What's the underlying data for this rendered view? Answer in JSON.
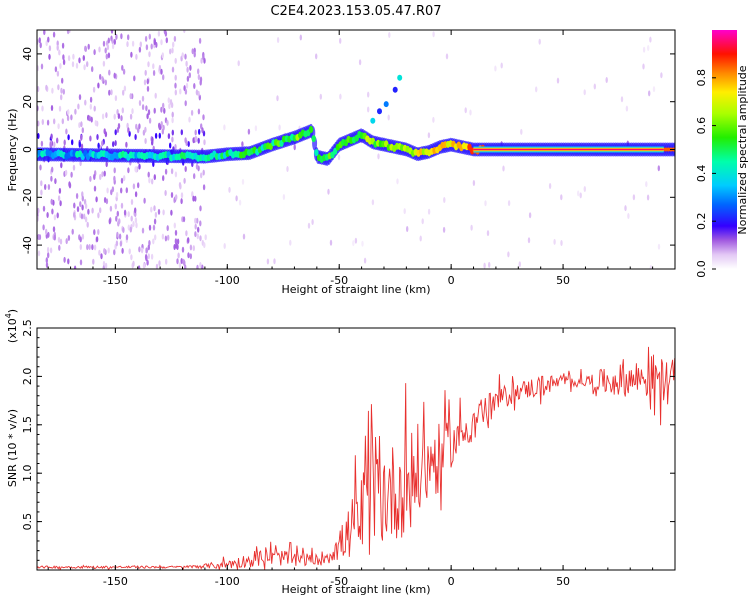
{
  "title": "C2E4.2023.153.05.47.R07",
  "colorbar": {
    "label": "Normalized spectral amplitude",
    "ticks": [
      "0.0",
      "0.2",
      "0.4",
      "0.6",
      "0.8"
    ]
  },
  "chart_data": [
    {
      "type": "heatmap",
      "title": "C2E4.2023.153.05.47.R07",
      "xlabel": "Height of straight line (km)",
      "ylabel": "Frequency (Hz)",
      "xlim": [
        -185,
        100
      ],
      "ylim": [
        -50,
        50
      ],
      "x_ticks": [
        -150,
        -100,
        -50,
        0,
        50
      ],
      "x_tick_labels": [
        "-150",
        "-100",
        "-50",
        "0",
        "50"
      ],
      "y_ticks": [
        -40,
        -20,
        0,
        20,
        40
      ],
      "y_tick_labels": [
        "-40",
        "-20",
        "0",
        "20",
        "40"
      ],
      "color_range": [
        0,
        1
      ],
      "ridge": {
        "x": [
          -185,
          -150,
          -110,
          -100,
          -90,
          -80,
          -70,
          -62,
          -60,
          -55,
          -50,
          -45,
          -40,
          -35,
          -30,
          -25,
          -20,
          -15,
          -10,
          -5,
          0,
          5,
          10,
          15,
          50,
          95
        ],
        "y": [
          -2,
          -2.5,
          -3,
          -2,
          -1.5,
          2,
          5,
          8,
          -3,
          -4,
          2,
          4,
          6,
          3,
          2,
          1,
          0,
          -2,
          -1,
          1,
          2,
          1,
          0,
          0,
          0,
          0
        ],
        "amplitude": [
          0.4,
          0.45,
          0.5,
          0.55,
          0.55,
          0.6,
          0.65,
          0.7,
          0.6,
          0.6,
          0.65,
          0.65,
          0.7,
          0.7,
          0.72,
          0.75,
          0.8,
          0.8,
          0.85,
          0.85,
          0.9,
          0.95,
          1.0,
          1.0,
          1.0,
          1.0
        ]
      }
    },
    {
      "type": "line",
      "xlabel": "Height of straight line (km)",
      "ylabel": "SNR (10 * v/v)",
      "y_scale_label": "(x10",
      "y_scale_exp": "4",
      "xlim": [
        -185,
        100
      ],
      "ylim": [
        0,
        2.5
      ],
      "x_ticks": [
        -150,
        -100,
        -50,
        0,
        50
      ],
      "x_tick_labels": [
        "-150",
        "-100",
        "-50",
        "0",
        "50"
      ],
      "y_ticks": [
        0.5,
        1.0,
        1.5,
        2.0,
        2.5
      ],
      "y_tick_labels": [
        "0.5",
        "1.0",
        "1.5",
        "2.0",
        "2.5"
      ],
      "color": "#e8302e",
      "envelope": {
        "x": [
          -185,
          -150,
          -120,
          -110,
          -100,
          -90,
          -80,
          -70,
          -60,
          -55,
          -50,
          -45,
          -40,
          -35,
          -30,
          -25,
          -20,
          -15,
          -10,
          -5,
          0,
          5,
          10,
          15,
          20,
          25,
          30,
          40,
          50,
          60,
          70,
          80,
          90,
          95
        ],
        "mean": [
          0.03,
          0.03,
          0.03,
          0.04,
          0.06,
          0.1,
          0.13,
          0.12,
          0.1,
          0.15,
          0.25,
          0.4,
          0.55,
          0.75,
          0.8,
          0.8,
          0.9,
          1.0,
          1.1,
          1.15,
          1.3,
          1.4,
          1.55,
          1.65,
          1.75,
          1.8,
          1.85,
          1.9,
          1.95,
          1.95,
          1.95,
          1.97,
          2.0,
          1.95
        ],
        "spread": [
          0.02,
          0.02,
          0.02,
          0.04,
          0.08,
          0.12,
          0.15,
          0.12,
          0.1,
          0.15,
          0.25,
          0.5,
          0.8,
          1.0,
          0.9,
          0.85,
          0.9,
          0.85,
          0.7,
          0.6,
          0.4,
          0.35,
          0.3,
          0.25,
          0.2,
          0.2,
          0.15,
          0.2,
          0.1,
          0.1,
          0.25,
          0.3,
          0.4,
          0.4
        ]
      }
    }
  ]
}
